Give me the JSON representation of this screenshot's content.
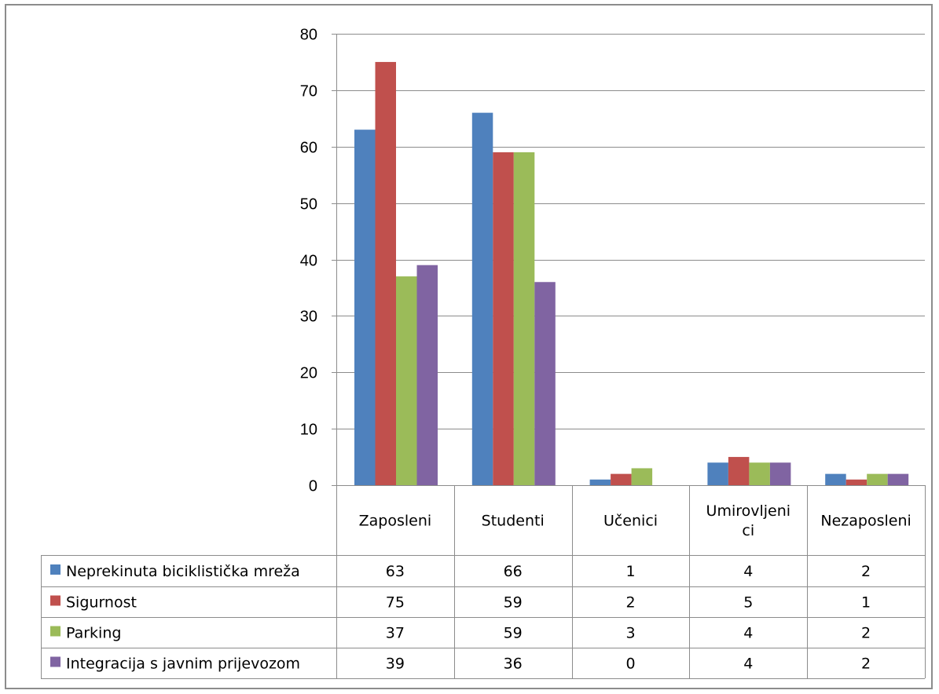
{
  "chart_data": {
    "type": "bar",
    "title": "",
    "xlabel": "",
    "ylabel": "",
    "ylim": [
      0,
      80
    ],
    "yticks": [
      0,
      10,
      20,
      30,
      40,
      50,
      60,
      70,
      80
    ],
    "grid": true,
    "legend_placement": "data-table-left",
    "categories": [
      "Zaposleni",
      "Studenti",
      "Učenici",
      "Umirovljeni ci",
      "Nezaposleni"
    ],
    "category_lines": [
      [
        "Zaposleni"
      ],
      [
        "Studenti"
      ],
      [
        "Učenici"
      ],
      [
        "Umirovljeni",
        "ci"
      ],
      [
        "Nezaposleni"
      ]
    ],
    "series": [
      {
        "name": "Neprekinuta biciklistička mreža",
        "color": "#4f81bd",
        "values": [
          63,
          66,
          1,
          4,
          2
        ]
      },
      {
        "name": "Sigurnost",
        "color": "#c0504d",
        "values": [
          75,
          59,
          2,
          5,
          1
        ]
      },
      {
        "name": "Parking",
        "color": "#9bbb59",
        "values": [
          37,
          59,
          3,
          4,
          2
        ]
      },
      {
        "name": "Integracija s javnim prijevozom",
        "color": "#8064a2",
        "values": [
          39,
          36,
          0,
          4,
          2
        ]
      }
    ]
  }
}
